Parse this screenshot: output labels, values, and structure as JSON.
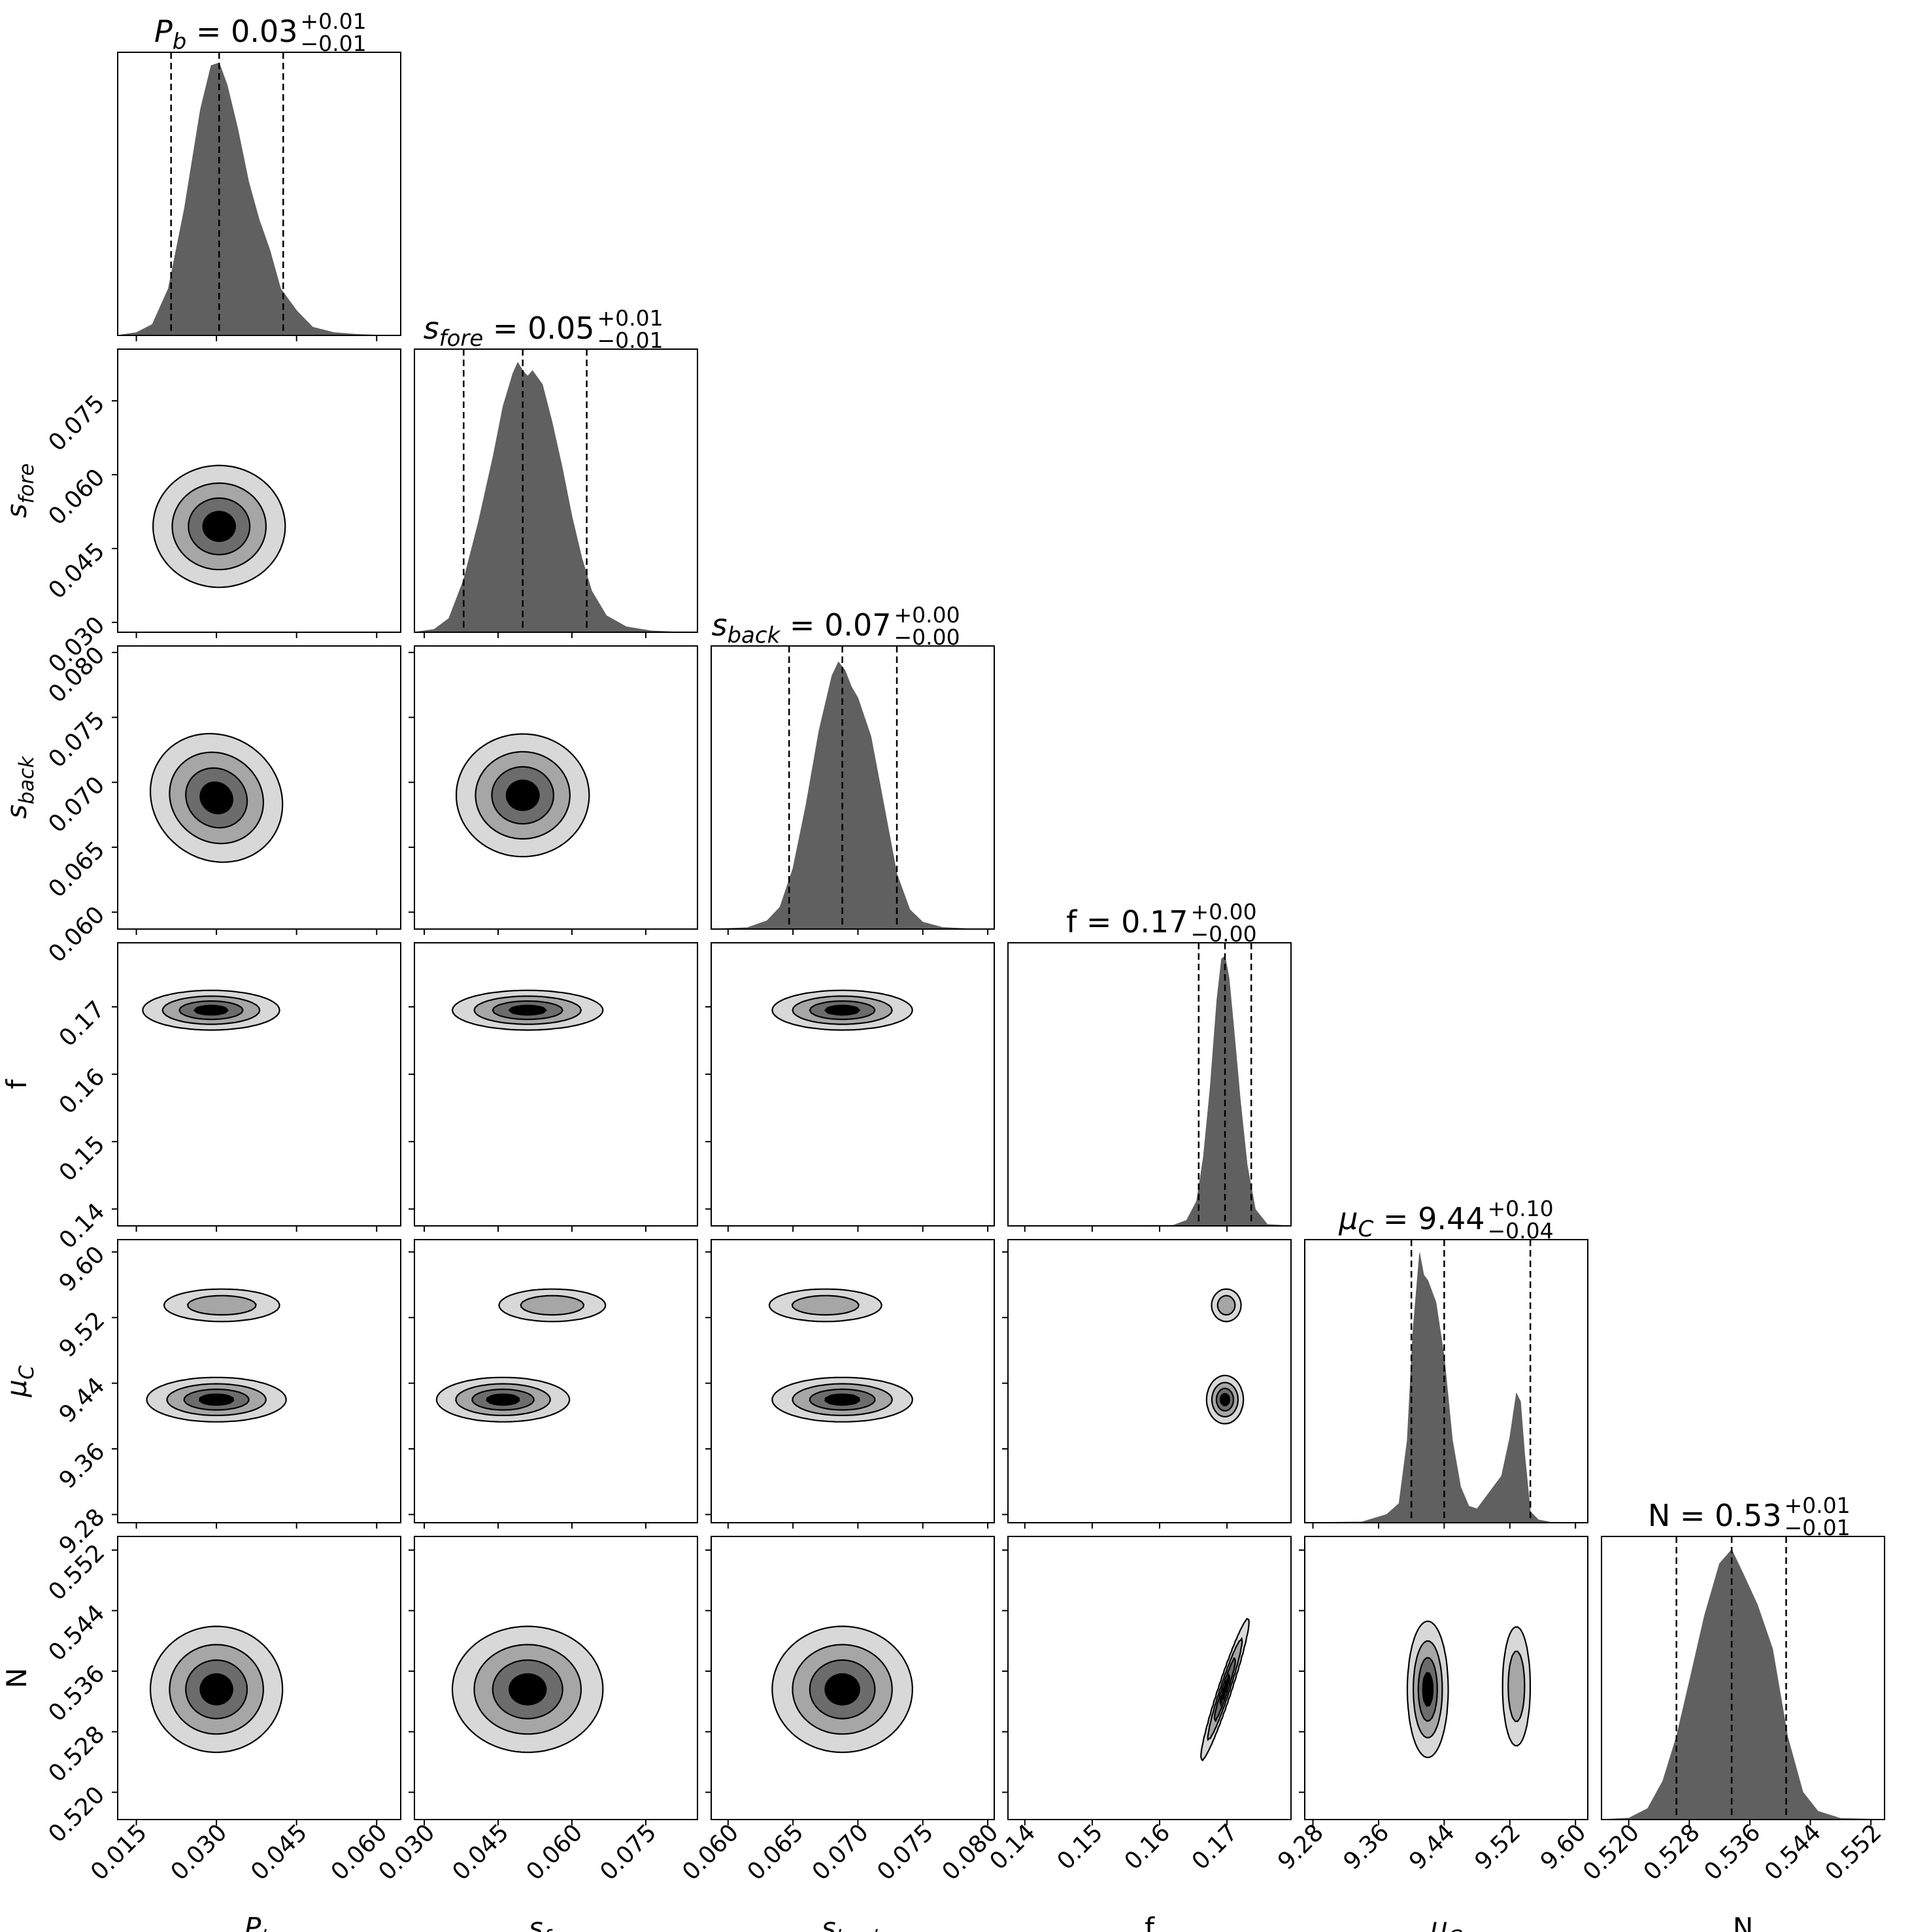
{
  "chart_data": {
    "type": "corner",
    "parameters": [
      {
        "key": "Pb",
        "label": "P",
        "label_sub": "b",
        "italic": true,
        "title": {
          "lhs": "P",
          "lhs_sub": "b",
          "value": "0.03",
          "plus": "+0.01",
          "minus": "−0.01"
        },
        "ticks": [
          0.015,
          0.03,
          0.045,
          0.06
        ],
        "tick_labels": [
          "0.015",
          "0.030",
          "0.045",
          "0.060"
        ],
        "range": [
          0.0115,
          0.0645
        ],
        "median": 0.0305,
        "q16": 0.0215,
        "q84": 0.0425,
        "hist": {
          "x": [
            0.0115,
            0.015,
            0.018,
            0.021,
            0.024,
            0.027,
            0.029,
            0.0305,
            0.032,
            0.034,
            0.036,
            0.038,
            0.04,
            0.042,
            0.045,
            0.048,
            0.052,
            0.056,
            0.06,
            0.0645
          ],
          "y": [
            0,
            0.01,
            0.04,
            0.17,
            0.46,
            0.82,
            0.98,
            0.99,
            0.91,
            0.75,
            0.56,
            0.42,
            0.31,
            0.17,
            0.09,
            0.03,
            0.01,
            0.004,
            0.001,
            0
          ]
        }
      },
      {
        "key": "sfore",
        "label": "s",
        "label_sub": "fore",
        "italic": true,
        "title": {
          "lhs": "s",
          "lhs_sub": "fore",
          "value": "0.05",
          "plus": "+0.01",
          "minus": "−0.01"
        },
        "ticks": [
          0.03,
          0.045,
          0.06,
          0.075
        ],
        "tick_labels": [
          "0.030",
          "0.045",
          "0.060",
          "0.075"
        ],
        "range": [
          0.028,
          0.0855
        ],
        "median": 0.05,
        "q16": 0.038,
        "q84": 0.063,
        "hist": {
          "x": [
            0.028,
            0.032,
            0.035,
            0.038,
            0.041,
            0.044,
            0.046,
            0.048,
            0.049,
            0.05,
            0.051,
            0.052,
            0.054,
            0.056,
            0.058,
            0.06,
            0.062,
            0.064,
            0.067,
            0.071,
            0.076,
            0.081,
            0.0855
          ],
          "y": [
            0,
            0.01,
            0.05,
            0.19,
            0.4,
            0.64,
            0.82,
            0.94,
            0.98,
            0.95,
            0.93,
            0.95,
            0.9,
            0.76,
            0.6,
            0.42,
            0.27,
            0.15,
            0.06,
            0.02,
            0.005,
            0.001,
            0
          ]
        }
      },
      {
        "key": "sback",
        "label": "s",
        "label_sub": "back",
        "italic": true,
        "title": {
          "lhs": "s",
          "lhs_sub": "back",
          "value": "0.07",
          "plus": "+0.00",
          "minus": "−0.00"
        },
        "ticks": [
          0.06,
          0.065,
          0.07,
          0.075,
          0.08
        ],
        "tick_labels": [
          "0.060",
          "0.065",
          "0.070",
          "0.075",
          "0.080"
        ],
        "range": [
          0.0587,
          0.0805
        ],
        "median": 0.0688,
        "q16": 0.0647,
        "q84": 0.073,
        "hist": {
          "x": [
            0.0587,
            0.0615,
            0.063,
            0.064,
            0.065,
            0.066,
            0.067,
            0.068,
            0.0685,
            0.069,
            0.0695,
            0.07,
            0.071,
            0.072,
            0.073,
            0.074,
            0.075,
            0.0765,
            0.0785,
            0.0805
          ],
          "y": [
            0,
            0.005,
            0.03,
            0.08,
            0.22,
            0.45,
            0.72,
            0.92,
            0.97,
            0.94,
            0.88,
            0.84,
            0.7,
            0.45,
            0.2,
            0.07,
            0.025,
            0.006,
            0.001,
            0
          ]
        }
      },
      {
        "key": "f",
        "label": "f",
        "label_sub": "",
        "italic": false,
        "title": {
          "lhs": "f",
          "lhs_sub": "",
          "value": "0.17",
          "plus": "+0.00",
          "minus": "−0.00"
        },
        "ticks": [
          0.14,
          0.15,
          0.16,
          0.17
        ],
        "tick_labels": [
          "0.14",
          "0.15",
          "0.16",
          "0.17"
        ],
        "range": [
          0.1375,
          0.1795
        ],
        "median": 0.1697,
        "q16": 0.1658,
        "q84": 0.1736,
        "hist": {
          "x": [
            0.1375,
            0.162,
            0.164,
            0.1655,
            0.1665,
            0.1675,
            0.1685,
            0.1692,
            0.1697,
            0.1703,
            0.171,
            0.172,
            0.173,
            0.1742,
            0.176,
            0.1795
          ],
          "y": [
            0,
            0.002,
            0.02,
            0.09,
            0.25,
            0.5,
            0.82,
            0.97,
            0.98,
            0.9,
            0.72,
            0.45,
            0.22,
            0.06,
            0.005,
            0
          ]
        }
      },
      {
        "key": "muC",
        "label": "μ",
        "label_sub": "C",
        "italic": true,
        "title": {
          "lhs": "μ",
          "lhs_sub": "C",
          "value": "9.44",
          "plus": "+0.10",
          "minus": "−0.04"
        },
        "ticks": [
          9.28,
          9.36,
          9.44,
          9.52,
          9.6
        ],
        "tick_labels": [
          "9.28",
          "9.36",
          "9.44",
          "9.52",
          "9.60"
        ],
        "range": [
          9.27,
          9.615
        ],
        "median": 9.44,
        "q16": 9.4,
        "q84": 9.545,
        "hist": {
          "x": [
            9.27,
            9.34,
            9.37,
            9.385,
            9.395,
            9.402,
            9.41,
            9.415,
            9.42,
            9.43,
            9.44,
            9.45,
            9.46,
            9.47,
            9.48,
            9.495,
            9.51,
            9.52,
            9.528,
            9.533,
            9.538,
            9.545,
            9.555,
            9.57,
            9.615
          ],
          "y": [
            0,
            0.003,
            0.03,
            0.07,
            0.3,
            0.7,
            0.98,
            0.9,
            0.88,
            0.8,
            0.6,
            0.3,
            0.13,
            0.06,
            0.05,
            0.11,
            0.17,
            0.31,
            0.47,
            0.44,
            0.25,
            0.04,
            0.01,
            0.002,
            0
          ]
        }
      },
      {
        "key": "N",
        "label": "N",
        "label_sub": "",
        "italic": false,
        "title": {
          "lhs": "N",
          "lhs_sub": "",
          "value": "0.53",
          "plus": "+0.01",
          "minus": "−0.01"
        },
        "ticks": [
          0.52,
          0.528,
          0.536,
          0.544,
          0.552
        ],
        "tick_labels": [
          "0.520",
          "0.528",
          "0.536",
          "0.544",
          "0.552"
        ],
        "range": [
          0.5164,
          0.5538
        ],
        "median": 0.5336,
        "q16": 0.5263,
        "q84": 0.5408,
        "hist": {
          "x": [
            0.5164,
            0.52,
            0.5225,
            0.5245,
            0.5263,
            0.528,
            0.53,
            0.532,
            0.5336,
            0.535,
            0.537,
            0.539,
            0.541,
            0.543,
            0.545,
            0.548,
            0.5538
          ],
          "y": [
            0,
            0.005,
            0.04,
            0.14,
            0.3,
            0.5,
            0.74,
            0.93,
            0.98,
            0.9,
            0.78,
            0.62,
            0.3,
            0.1,
            0.03,
            0.004,
            0
          ]
        }
      }
    ],
    "contour_levels": [
      "outermost",
      "second",
      "third",
      "innermost"
    ],
    "contour_colors": [
      "#d8d8d8",
      "#a6a6a6",
      "#6c6c6c",
      "#000000"
    ],
    "hist_color": "#606060",
    "pairs": [
      {
        "x": "Pb",
        "y": "sfore",
        "blobs": [
          {
            "cx": 0.0305,
            "cy": 0.0495,
            "sx": 0.0055,
            "sy": 0.0055,
            "w": 1,
            "rho": 0
          }
        ]
      },
      {
        "x": "Pb",
        "y": "sback",
        "blobs": [
          {
            "cx": 0.03,
            "cy": 0.0688,
            "sx": 0.0055,
            "sy": 0.0022,
            "w": 1,
            "rho": -0.1
          }
        ]
      },
      {
        "x": "sfore",
        "y": "sback",
        "blobs": [
          {
            "cx": 0.05,
            "cy": 0.069,
            "sx": 0.006,
            "sy": 0.0021,
            "w": 1,
            "rho": 0
          }
        ]
      },
      {
        "x": "Pb",
        "y": "f",
        "blobs": [
          {
            "cx": 0.029,
            "cy": 0.1695,
            "sx": 0.0057,
            "sy": 0.0013,
            "w": 1,
            "rho": 0
          }
        ]
      },
      {
        "x": "sfore",
        "y": "f",
        "blobs": [
          {
            "cx": 0.051,
            "cy": 0.1695,
            "sx": 0.0068,
            "sy": 0.0013,
            "w": 1,
            "rho": 0
          }
        ]
      },
      {
        "x": "sback",
        "y": "f",
        "blobs": [
          {
            "cx": 0.0688,
            "cy": 0.1695,
            "sx": 0.0024,
            "sy": 0.0013,
            "w": 1,
            "rho": 0
          }
        ]
      },
      {
        "x": "Pb",
        "y": "muC",
        "blobs": [
          {
            "cx": 0.03,
            "cy": 9.42,
            "sx": 0.0058,
            "sy": 0.012,
            "w": 1,
            "rho": 0
          },
          {
            "cx": 0.031,
            "cy": 9.535,
            "sx": 0.0055,
            "sy": 0.01,
            "w": 0.55,
            "rho": 0
          }
        ]
      },
      {
        "x": "sfore",
        "y": "muC",
        "blobs": [
          {
            "cx": 0.046,
            "cy": 9.42,
            "sx": 0.006,
            "sy": 0.012,
            "w": 1,
            "rho": 0
          },
          {
            "cx": 0.056,
            "cy": 9.535,
            "sx": 0.0055,
            "sy": 0.01,
            "w": 0.55,
            "rho": 0
          }
        ]
      },
      {
        "x": "sback",
        "y": "muC",
        "blobs": [
          {
            "cx": 0.0688,
            "cy": 9.42,
            "sx": 0.0024,
            "sy": 0.012,
            "w": 1,
            "rho": 0
          },
          {
            "cx": 0.0675,
            "cy": 9.535,
            "sx": 0.0022,
            "sy": 0.01,
            "w": 0.55,
            "rho": 0
          }
        ]
      },
      {
        "x": "f",
        "y": "muC",
        "blobs": [
          {
            "cx": 0.1697,
            "cy": 9.42,
            "sx": 0.0012,
            "sy": 0.013,
            "w": 1,
            "rho": 0
          },
          {
            "cx": 0.1699,
            "cy": 9.535,
            "sx": 0.0011,
            "sy": 0.01,
            "w": 0.55,
            "rho": 0
          }
        ]
      },
      {
        "x": "Pb",
        "y": "N",
        "blobs": [
          {
            "cx": 0.03,
            "cy": 0.5336,
            "sx": 0.0055,
            "sy": 0.0037,
            "w": 1,
            "rho": 0
          }
        ]
      },
      {
        "x": "sfore",
        "y": "N",
        "blobs": [
          {
            "cx": 0.051,
            "cy": 0.5336,
            "sx": 0.0068,
            "sy": 0.0037,
            "w": 1,
            "rho": 0
          }
        ]
      },
      {
        "x": "sback",
        "y": "N",
        "blobs": [
          {
            "cx": 0.0688,
            "cy": 0.5336,
            "sx": 0.0024,
            "sy": 0.0037,
            "w": 1,
            "rho": 0
          }
        ]
      },
      {
        "x": "f",
        "y": "N",
        "blobs": [
          {
            "cx": 0.1697,
            "cy": 0.5336,
            "sx": 0.0016,
            "sy": 0.0042,
            "w": 1,
            "rho": 0.96
          }
        ]
      },
      {
        "x": "muC",
        "y": "N",
        "blobs": [
          {
            "cx": 9.42,
            "cy": 0.5336,
            "sx": 0.011,
            "sy": 0.004,
            "w": 1,
            "rho": 0
          },
          {
            "cx": 9.528,
            "cy": 0.534,
            "sx": 0.0085,
            "sy": 0.004,
            "w": 0.55,
            "rho": 0
          }
        ]
      }
    ]
  }
}
